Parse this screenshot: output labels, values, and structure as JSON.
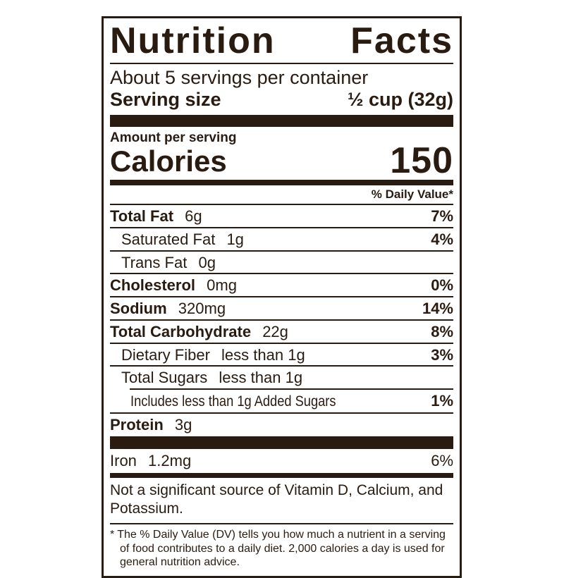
{
  "colors": {
    "ink": "#2a1b11",
    "background": "#ffffff"
  },
  "label": {
    "title_word_1": "Nutrition",
    "title_word_2": "Facts",
    "servings_per_container": "About 5 servings per container",
    "serving_size_label": "Serving size",
    "serving_size_value": "½ cup (32g)",
    "amount_per_serving_label": "Amount per serving",
    "calories_label": "Calories",
    "calories_value": "150",
    "daily_value_header": "% Daily Value*",
    "nutrient_rows": [
      {
        "name": "Total Fat",
        "amount": "6g",
        "daily_value": "7%"
      },
      {
        "name": "Saturated Fat",
        "amount": "1g",
        "daily_value": "4%"
      },
      {
        "name": "Trans Fat",
        "amount": "0g",
        "daily_value": ""
      },
      {
        "name": "Cholesterol",
        "amount": "0mg",
        "daily_value": "0%"
      },
      {
        "name": "Sodium",
        "amount": "320mg",
        "daily_value": "14%"
      },
      {
        "name": "Total Carbohydrate",
        "amount": "22g",
        "daily_value": "8%"
      },
      {
        "name": "Dietary Fiber",
        "amount": "less than 1g",
        "daily_value": "3%"
      },
      {
        "name": "Total Sugars",
        "amount": "less than 1g",
        "daily_value": ""
      },
      {
        "name": "Includes less than 1g Added Sugars",
        "amount": "",
        "daily_value": "1%"
      },
      {
        "name": "Protein",
        "amount": "3g",
        "daily_value": ""
      }
    ],
    "mineral_row": {
      "name": "Iron",
      "amount": "1.2mg",
      "daily_value": "6%"
    },
    "not_significant_note": "Not a significant source of Vitamin D, Calcium, and Potassium.",
    "footnote_marker": "*",
    "footnote_text": "The % Daily Value (DV) tells you how much a nutrient in a serving of food contributes to a daily diet. 2,000 calories a day is used for general nutrition advice."
  }
}
